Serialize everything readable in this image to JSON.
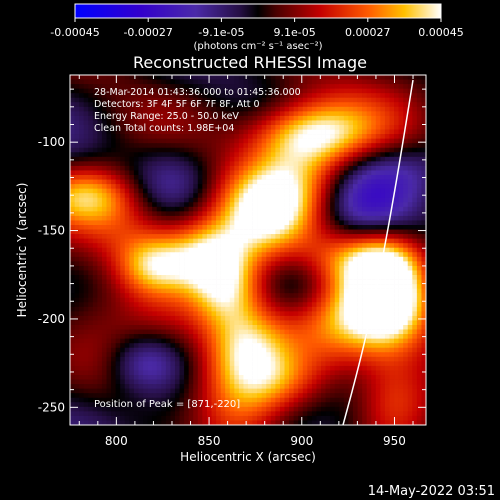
{
  "chart_data": {
    "type": "heatmap",
    "title": "Reconstructed RHESSI Image",
    "xlabel": "Heliocentric X (arcsec)",
    "ylabel": "Heliocentric Y (arcsec)",
    "x_ticks": [
      "800",
      "850",
      "900",
      "950"
    ],
    "y_ticks": [
      "-100",
      "-150",
      "-200",
      "-250"
    ],
    "xlim": [
      775,
      967
    ],
    "ylim": [
      -260,
      -62
    ],
    "colorbar": {
      "tick_labels": [
        "-0.00045",
        "-0.00027",
        "-9.1e-05",
        "9.1e-05",
        "0.00027",
        "0.00045"
      ],
      "unit_label": "(photons cm⁻² s⁻¹ asec⁻²)",
      "range": [
        -0.00045,
        0.00045
      ]
    },
    "annotations": {
      "time": "28-Mar-2014 01:43:36.000 to 01:45:36.000",
      "detectors": "Detectors: 3F 4F 5F 6F 7F 8F, Att 0",
      "energy": "Energy Range: 25.0 - 50.0 keV",
      "clean": "Clean     Total counts: 1.98E+04",
      "peak": "Position of Peak = [871,-220]"
    },
    "peak_position": [
      871,
      -220
    ],
    "limb": {
      "description": "solar limb arc",
      "color": "#ffffff"
    },
    "intensity_blobs": [
      {
        "x": 820,
        "y": -170,
        "value": 0.0003
      },
      {
        "x": 850,
        "y": -165,
        "value": 0.00038
      },
      {
        "x": 880,
        "y": -140,
        "value": 0.00036
      },
      {
        "x": 900,
        "y": -115,
        "value": 0.0003
      },
      {
        "x": 905,
        "y": -95,
        "value": 0.00028
      },
      {
        "x": 860,
        "y": -185,
        "value": 0.0003
      },
      {
        "x": 870,
        "y": -215,
        "value": 0.00034
      },
      {
        "x": 865,
        "y": -250,
        "value": 0.00026
      },
      {
        "x": 930,
        "y": -165,
        "value": 0.00026
      },
      {
        "x": 935,
        "y": -200,
        "value": 0.0002
      },
      {
        "x": 945,
        "y": -180,
        "value": 0.00028
      },
      {
        "x": 950,
        "y": -185,
        "value": 0.00022
      },
      {
        "x": 785,
        "y": -130,
        "value": 0.00034
      },
      {
        "x": 805,
        "y": -150,
        "value": 0.0002
      },
      {
        "x": 920,
        "y": -85,
        "value": 0.00012
      },
      {
        "x": 950,
        "y": -245,
        "value": 0.00018
      },
      {
        "x": 890,
        "y": -235,
        "value": 0.00014
      },
      {
        "x": 830,
        "y": -200,
        "value": 0.0001
      },
      {
        "x": 800,
        "y": -230,
        "value": 8e-05
      },
      {
        "x": 915,
        "y": -210,
        "value": 0.00016
      }
    ],
    "negative_regions": [
      {
        "x": 815,
        "y": -225,
        "value": -0.0002
      },
      {
        "x": 830,
        "y": -120,
        "value": -0.00014
      },
      {
        "x": 930,
        "y": -135,
        "value": -0.00018
      },
      {
        "x": 840,
        "y": -255,
        "value": -0.00012
      },
      {
        "x": 955,
        "y": -115,
        "value": -0.00012
      },
      {
        "x": 900,
        "y": -180,
        "value": -0.0001
      }
    ]
  },
  "footer": {
    "timestamp": "14-May-2022 03:51"
  },
  "colors": {
    "background": "#000000",
    "text": "#ffffff",
    "limb": "#ffffff"
  }
}
